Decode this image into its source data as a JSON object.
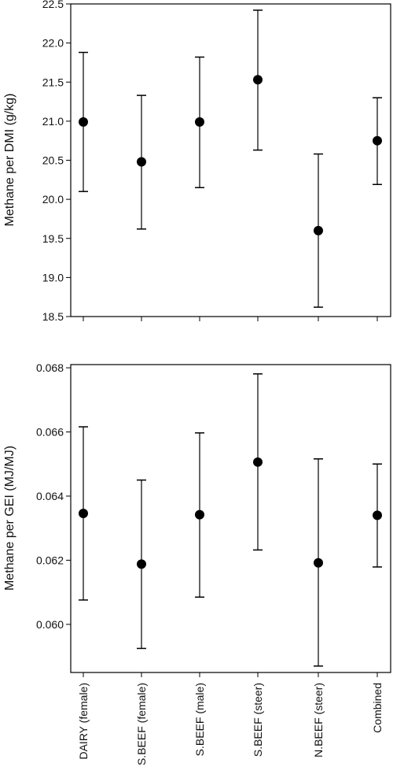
{
  "chart_data": [
    {
      "type": "scatter",
      "title": "",
      "xlabel": "",
      "ylabel": "Methane per DMI (g/kg)",
      "ylim": [
        18.5,
        22.5
      ],
      "yticks": [
        "18.5",
        "19.0",
        "19.5",
        "20.0",
        "20.5",
        "21.0",
        "21.5",
        "22.0",
        "22.5"
      ],
      "categories": [
        "DAIRY (female)",
        "S.BEEF (female)",
        "S.BEEF (male)",
        "S.BEEF (steer)",
        "N.BEEF (steer)",
        "Combined"
      ],
      "series": [
        {
          "values": [
            20.99,
            20.48,
            20.99,
            21.53,
            19.6,
            20.75
          ],
          "lower": [
            20.1,
            19.62,
            20.15,
            20.63,
            18.62,
            20.19
          ],
          "upper": [
            21.88,
            21.33,
            21.82,
            22.42,
            20.58,
            21.3
          ]
        }
      ],
      "grid": false
    },
    {
      "type": "scatter",
      "title": "",
      "xlabel": "",
      "ylabel": "Methane per GEI (MJ/MJ)",
      "ylim": [
        0.0585,
        0.0681
      ],
      "yticks": [
        "0.060",
        "0.062",
        "0.064",
        "0.066",
        "0.068"
      ],
      "categories": [
        "DAIRY (female)",
        "S.BEEF (female)",
        "S.BEEF (male)",
        "S.BEEF (steer)",
        "N.BEEF (steer)",
        "Combined"
      ],
      "series": [
        {
          "values": [
            0.06346,
            0.06188,
            0.06342,
            0.06506,
            0.06192,
            0.0634
          ],
          "lower": [
            0.06076,
            0.05925,
            0.06085,
            0.06232,
            0.0587,
            0.06179
          ],
          "upper": [
            0.06616,
            0.0645,
            0.06597,
            0.06781,
            0.06516,
            0.065
          ]
        }
      ],
      "grid": false
    }
  ]
}
